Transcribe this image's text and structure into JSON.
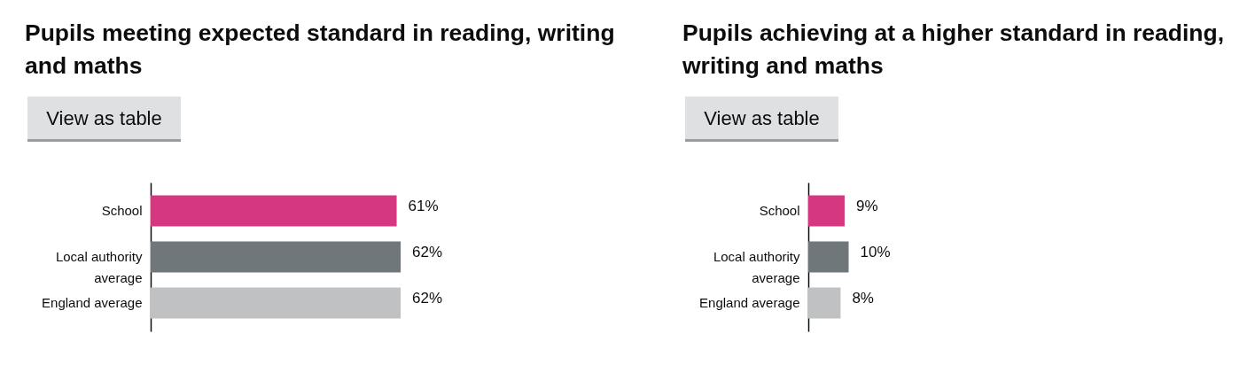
{
  "chart_data": [
    {
      "type": "bar",
      "orientation": "horizontal",
      "title": "Pupils meeting expected standard in reading, writing and maths",
      "annotations": [
        "View as table"
      ],
      "categories": [
        "School",
        "Local authority average",
        "England average"
      ],
      "values": [
        61,
        62,
        62
      ],
      "colors": [
        "#d53880",
        "#6f777b",
        "#bfc1c3"
      ],
      "value_labels": [
        "61%",
        "62%",
        "62%"
      ],
      "tick_labels": "y"
    },
    {
      "type": "bar",
      "orientation": "horizontal",
      "title": "Pupils achieving at a higher standard in reading, writing and maths",
      "annotations": [
        "View as table"
      ],
      "categories": [
        "School",
        "Local authority average",
        "England average"
      ],
      "values": [
        9,
        10,
        8
      ],
      "colors": [
        "#d53880",
        "#6f777b",
        "#bfc1c3"
      ],
      "value_labels": [
        "9%",
        "10%",
        "8%"
      ],
      "tick_labels": "y"
    }
  ]
}
